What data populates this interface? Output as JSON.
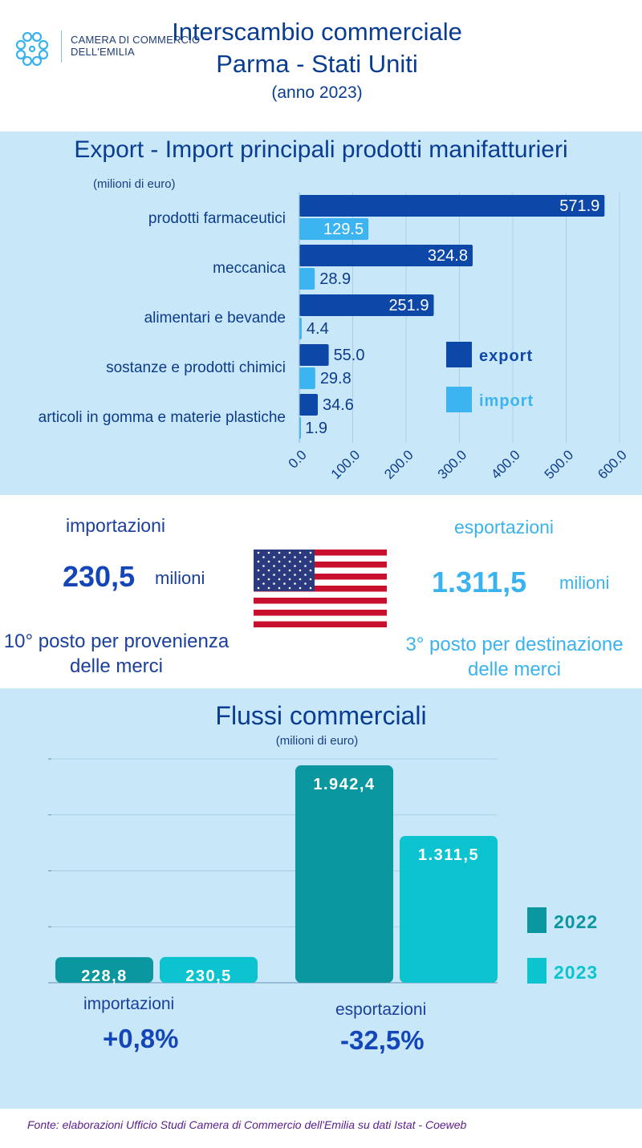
{
  "header": {
    "org_line1": "CAMERA DI COMMERCIO",
    "org_line2": "DELL'EMILIA",
    "title_line1": "Interscambio commerciale",
    "title_line2": "Parma - Stati Uniti",
    "title_line3": "(anno 2023)"
  },
  "section1": {
    "title": "Export - Import principali prodotti manifatturieri",
    "unit": "(milioni di euro)"
  },
  "middle": {
    "imports_label": "importazioni",
    "imports_value": "230,5",
    "imports_unit": "milioni",
    "imports_rank": "10° posto per provenienza delle merci",
    "exports_label": "esportazioni",
    "exports_value": "1.311,5",
    "exports_unit": "milioni",
    "exports_rank": "3° posto per destinazione delle merci"
  },
  "section2": {
    "title": "Flussi commerciali",
    "unit": "(milioni di euro)",
    "imports_label": "importazioni",
    "imports_change": "+0,8%",
    "exports_label": "esportazioni",
    "exports_change": "-32,5%"
  },
  "footer": {
    "source": "Fonte: elaborazioni Ufficio Studi Camera di Commercio dell'Emilia su dati  Istat - Coeweb"
  },
  "colors": {
    "export": "#0d47a8",
    "import": "#3db4f2",
    "y2022": "#0a97a0",
    "y2023": "#0cc4cf"
  },
  "chart_data": [
    {
      "type": "bar",
      "orientation": "horizontal",
      "categories": [
        "prodotti farmaceutici",
        "meccanica",
        "alimentari e bevande",
        "sostanze e prodotti chimici",
        "articoli in gomma e materie plastiche"
      ],
      "series": [
        {
          "name": "export",
          "values": [
            571.9,
            324.8,
            251.9,
            55.0,
            34.6
          ],
          "labels": [
            "571.9",
            "324.8",
            "251.9",
            "55.0",
            "34.6"
          ]
        },
        {
          "name": "import",
          "values": [
            129.5,
            28.9,
            4.4,
            29.8,
            1.9
          ],
          "labels": [
            "129.5",
            "28.9",
            "4.4",
            "29.8",
            "1.9"
          ]
        }
      ],
      "x_ticks": [
        "0.0",
        "100.0",
        "200.0",
        "300.0",
        "400.0",
        "500.0",
        "600.0"
      ],
      "xlim": [
        0,
        600
      ],
      "grid": true,
      "legend_position": "right"
    },
    {
      "type": "bar",
      "categories": [
        "importazioni",
        "esportazioni"
      ],
      "series": [
        {
          "name": "2022",
          "values": [
            228.8,
            1942.4
          ],
          "labels": [
            "228,8",
            "1.942,4"
          ]
        },
        {
          "name": "2023",
          "values": [
            230.5,
            1311.5
          ],
          "labels": [
            "230,5",
            "1.311,5"
          ]
        }
      ],
      "ylim": [
        0,
        2000
      ],
      "grid": true,
      "legend_position": "right"
    }
  ]
}
